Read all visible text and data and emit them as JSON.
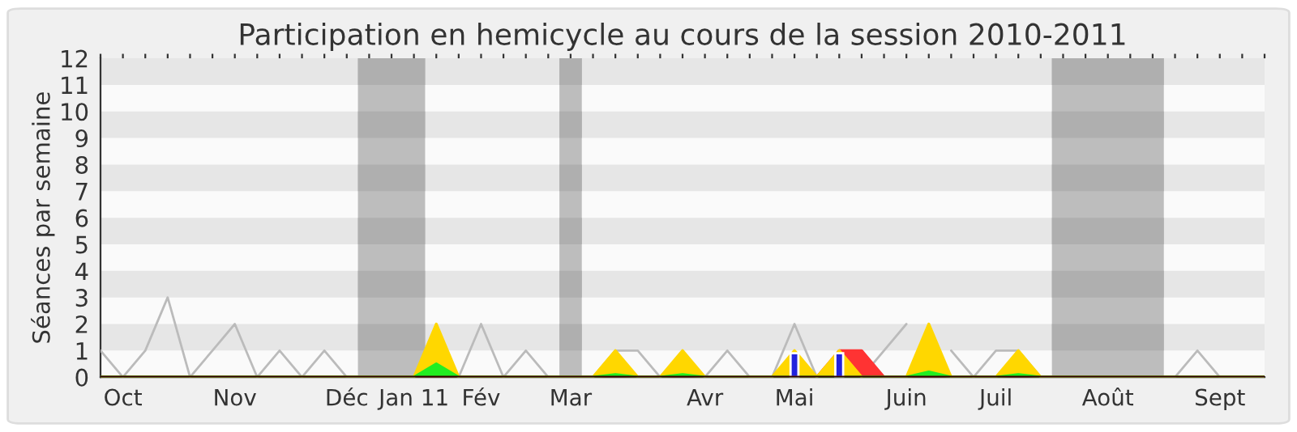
{
  "chart_data": {
    "type": "area",
    "title": "Participation en hemicycle au cours de la session 2010-2011",
    "ylabel": "Séances par semaine",
    "categories": [
      null,
      "Oct",
      null,
      null,
      null,
      null,
      "Nov",
      null,
      null,
      null,
      null,
      "Déc",
      null,
      null,
      "Jan 11",
      null,
      null,
      "Fév",
      null,
      null,
      null,
      "Mar",
      null,
      null,
      null,
      null,
      null,
      "Avr",
      null,
      null,
      null,
      "Mai",
      null,
      null,
      null,
      null,
      "Juin",
      null,
      null,
      null,
      "Juil",
      null,
      null,
      null,
      null,
      "Août",
      null,
      null,
      null,
      null,
      "Sept",
      null,
      null
    ],
    "series": [
      {
        "type": "line",
        "color": "#bbbbbb",
        "values": [
          1,
          0,
          1,
          3,
          0,
          1,
          2,
          0,
          1,
          0,
          1,
          0,
          0,
          0,
          0,
          null,
          0,
          2,
          0,
          1,
          0,
          0,
          0,
          1,
          1,
          0,
          null,
          0,
          1,
          0,
          0,
          2,
          0,
          null,
          0,
          1,
          2,
          null,
          1,
          0,
          1,
          1,
          0,
          0,
          0,
          0,
          0,
          0,
          0,
          1,
          0,
          0,
          0
        ]
      },
      {
        "color": "#ff3333",
        "values": [
          0,
          0,
          0,
          0,
          0,
          0,
          0,
          0,
          0,
          0,
          0,
          0,
          0,
          0,
          0,
          0,
          0,
          0,
          0,
          0,
          0,
          0,
          0,
          0,
          0,
          0,
          0,
          0,
          0,
          0,
          0,
          0,
          0,
          1,
          1,
          0,
          0,
          0,
          0,
          0,
          0,
          0,
          0,
          0,
          0,
          0,
          0,
          0,
          0,
          0,
          0,
          0,
          0
        ]
      },
      {
        "color": "#ffd700",
        "values": [
          0,
          0,
          0,
          0,
          0,
          0,
          0,
          0,
          0,
          0,
          0,
          0,
          0,
          0,
          0,
          2,
          0,
          0,
          0,
          0,
          0,
          0,
          0,
          1,
          0,
          0,
          1,
          0,
          0,
          0,
          0,
          1,
          0,
          1,
          0,
          0,
          0,
          2,
          0,
          0,
          0,
          1,
          0,
          0,
          0,
          0,
          0,
          0,
          0,
          0,
          0,
          0,
          0
        ]
      },
      {
        "color": "#22ee22",
        "values": [
          0,
          0,
          0,
          0,
          0,
          0,
          0,
          0,
          0,
          0,
          0,
          0,
          0,
          0,
          0,
          0.5,
          0,
          0,
          0,
          0,
          0,
          0,
          0,
          0.1,
          0,
          0,
          0.1,
          0,
          0,
          0,
          0,
          0,
          0,
          0,
          0,
          0,
          0,
          0.2,
          0,
          0,
          0,
          0.1,
          0,
          0,
          0,
          0,
          0,
          0,
          0,
          0,
          0,
          0,
          0
        ]
      },
      {
        "type": "bar",
        "color": "#2222dd",
        "values": [
          null,
          null,
          null,
          null,
          null,
          null,
          null,
          null,
          null,
          null,
          null,
          null,
          null,
          null,
          null,
          null,
          null,
          null,
          null,
          null,
          null,
          null,
          null,
          null,
          null,
          null,
          null,
          null,
          null,
          null,
          null,
          0.9,
          null,
          0.9,
          null,
          null,
          null,
          null,
          null,
          null,
          null,
          null,
          null,
          null,
          null,
          null,
          null,
          null,
          null,
          null,
          null,
          null,
          null
        ]
      }
    ],
    "ylim": [
      0,
      12
    ],
    "yticks": [
      0,
      1,
      2,
      3,
      4,
      5,
      6,
      7,
      8,
      9,
      10,
      11,
      12
    ],
    "grid": false
  }
}
